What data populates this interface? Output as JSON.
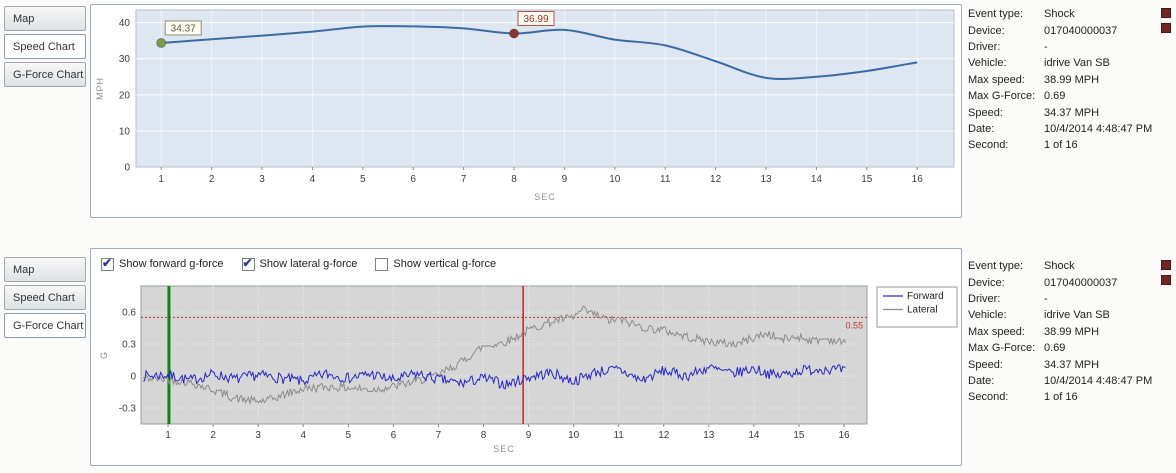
{
  "tabs": {
    "items": [
      "Map",
      "Speed Chart",
      "G-Force Chart"
    ]
  },
  "panels": {
    "top": {
      "active_tab": "Speed Chart"
    },
    "bottom": {
      "active_tab": "G-Force Chart"
    }
  },
  "info": {
    "rows": [
      {
        "label": "Event type:",
        "value": "Shock"
      },
      {
        "label": "Device:",
        "value": "017040000037"
      },
      {
        "label": "Driver:",
        "value": "-"
      },
      {
        "label": "Vehicle:",
        "value": "idrive Van SB"
      },
      {
        "label": "Max speed:",
        "value": "38.99 MPH"
      },
      {
        "label": "Max G-Force:",
        "value": "0.69"
      },
      {
        "label": "Speed:",
        "value": "34.37 MPH"
      },
      {
        "label": "Date:",
        "value": "10/4/2014 4:48:47 PM"
      },
      {
        "label": "Second:",
        "value": "1 of 16"
      }
    ]
  },
  "gforce_controls": {
    "checkboxes": [
      {
        "label": "Show forward g-force",
        "checked": true
      },
      {
        "label": "Show lateral g-force",
        "checked": true
      },
      {
        "label": "Show vertical g-force",
        "checked": false
      }
    ]
  },
  "chart_data": [
    {
      "id": "speed",
      "type": "line",
      "title": "Speed Chart",
      "xlabel": "SEC",
      "ylabel": "MPH",
      "x": [
        1,
        2,
        3,
        4,
        5,
        6,
        7,
        8,
        9,
        10,
        11,
        12,
        13,
        14,
        15,
        16
      ],
      "values": [
        34.37,
        35.4,
        36.4,
        37.5,
        38.9,
        38.95,
        38.4,
        36.99,
        38.0,
        35.3,
        33.7,
        29.3,
        24.7,
        25.0,
        26.6,
        29.0
      ],
      "ylim": [
        0,
        40
      ],
      "yticks": [
        0,
        10,
        20,
        30,
        40
      ],
      "xticks": [
        1,
        2,
        3,
        4,
        5,
        6,
        7,
        8,
        9,
        10,
        11,
        12,
        13,
        14,
        15,
        16
      ],
      "line_color": "#3a6ca3",
      "plot_bg": "#dde6f1",
      "markers": [
        {
          "x": 1,
          "y": 34.37,
          "label": "34.37",
          "dot_color": "#7d9b40",
          "box_border": "#8f8f72",
          "text_color": "#5f5f3a"
        },
        {
          "x": 8,
          "y": 36.99,
          "label": "36.99",
          "dot_color": "#93322b",
          "box_border": "#b2564a",
          "text_color": "#a03226"
        }
      ]
    },
    {
      "id": "gforce",
      "type": "line",
      "title": "G-Force Chart",
      "xlabel": "SEC",
      "ylabel": "G",
      "ylim": [
        -0.3,
        0.6
      ],
      "yticks": [
        -0.3,
        0,
        0.3,
        0.6
      ],
      "xticks": [
        1,
        2,
        3,
        4,
        5,
        6,
        7,
        8,
        9,
        10,
        11,
        12,
        13,
        14,
        15,
        16
      ],
      "plot_bg": "#d6d6d6",
      "threshold": {
        "y": 0.55,
        "label": "0.55",
        "color": "#c0392b"
      },
      "start_marker_x": 1.02,
      "start_marker_color": "#128212",
      "event_marker_x": 8.88,
      "event_marker_color": "#cc2222",
      "legend": {
        "position": "right-top",
        "entries": [
          "Forward",
          "Lateral"
        ]
      },
      "series": [
        {
          "name": "Forward",
          "color": "#2626c9",
          "noise": 0.05,
          "keypoints": [
            [
              0.45,
              0.0
            ],
            [
              1,
              0.01
            ],
            [
              1.5,
              -0.04
            ],
            [
              2,
              0.02
            ],
            [
              2.5,
              -0.03
            ],
            [
              3,
              0.01
            ],
            [
              3.5,
              -0.02
            ],
            [
              4,
              -0.05
            ],
            [
              4.5,
              0.02
            ],
            [
              5,
              -0.02
            ],
            [
              5.5,
              0.02
            ],
            [
              6,
              -0.04
            ],
            [
              6.5,
              0.02
            ],
            [
              7,
              -0.03
            ],
            [
              7.5,
              -0.07
            ],
            [
              8,
              -0.02
            ],
            [
              8.5,
              -0.08
            ],
            [
              9,
              -0.01
            ],
            [
              9.5,
              0.03
            ],
            [
              10,
              -0.05
            ],
            [
              10.5,
              0.04
            ],
            [
              11,
              0.06
            ],
            [
              11.5,
              -0.04
            ],
            [
              12,
              0.05
            ],
            [
              12.5,
              0.0
            ],
            [
              13,
              0.08
            ],
            [
              13.5,
              0.02
            ],
            [
              14,
              0.07
            ],
            [
              14.5,
              0.0
            ],
            [
              15,
              0.05
            ],
            [
              15.5,
              0.07
            ],
            [
              16.05,
              0.05
            ]
          ]
        },
        {
          "name": "Lateral",
          "color": "#8c8c8c",
          "noise": 0.04,
          "keypoints": [
            [
              0.45,
              -0.02
            ],
            [
              1,
              -0.03
            ],
            [
              1.5,
              -0.06
            ],
            [
              2,
              -0.13
            ],
            [
              2.5,
              -0.21
            ],
            [
              3,
              -0.24
            ],
            [
              3.3,
              -0.22
            ],
            [
              3.6,
              -0.17
            ],
            [
              4,
              -0.12
            ],
            [
              4.5,
              -0.1
            ],
            [
              5,
              -0.11
            ],
            [
              5.5,
              -0.13
            ],
            [
              6,
              -0.1
            ],
            [
              6.5,
              -0.05
            ],
            [
              7,
              0.01
            ],
            [
              7.5,
              0.13
            ],
            [
              8,
              0.28
            ],
            [
              8.3,
              0.3
            ],
            [
              8.6,
              0.34
            ],
            [
              9,
              0.43
            ],
            [
              9.3,
              0.48
            ],
            [
              9.6,
              0.52
            ],
            [
              10,
              0.55
            ],
            [
              10.2,
              0.62
            ],
            [
              10.5,
              0.57
            ],
            [
              10.8,
              0.52
            ],
            [
              11,
              0.53
            ],
            [
              11.3,
              0.49
            ],
            [
              11.6,
              0.45
            ],
            [
              12,
              0.43
            ],
            [
              12.4,
              0.38
            ],
            [
              12.8,
              0.34
            ],
            [
              13.2,
              0.31
            ],
            [
              13.6,
              0.3
            ],
            [
              14,
              0.36
            ],
            [
              14.3,
              0.4
            ],
            [
              14.6,
              0.34
            ],
            [
              15,
              0.37
            ],
            [
              15.3,
              0.33
            ],
            [
              15.6,
              0.35
            ],
            [
              16,
              0.31
            ]
          ]
        }
      ]
    }
  ]
}
